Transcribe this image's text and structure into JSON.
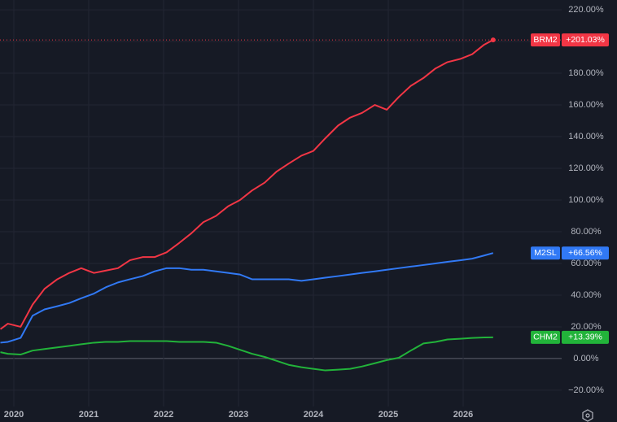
{
  "chart_data": {
    "type": "line",
    "x": [
      2019.82,
      2019.92,
      2020.09,
      2020.25,
      2020.41,
      2020.58,
      2020.74,
      2020.9,
      2021.07,
      2021.23,
      2021.39,
      2021.55,
      2021.72,
      2021.88,
      2022.04,
      2022.21,
      2022.37,
      2022.53,
      2022.7,
      2022.86,
      2023.02,
      2023.18,
      2023.35,
      2023.51,
      2023.67,
      2023.84,
      2024.0,
      2024.16,
      2024.33,
      2024.49,
      2024.65,
      2024.82,
      2024.98,
      2025.14,
      2025.3,
      2025.47,
      2025.63,
      2025.79,
      2025.96,
      2026.12,
      2026.28,
      2026.4
    ],
    "series": [
      {
        "name": "BRM2",
        "color": "#f23645",
        "price_line": true,
        "values": [
          18.5,
          22,
          20,
          34,
          44,
          50,
          54,
          57,
          54,
          55.5,
          57,
          62,
          64,
          64,
          67,
          73,
          79,
          86,
          90,
          96,
          100,
          106,
          111,
          118,
          123,
          128,
          131,
          139,
          147,
          152,
          155,
          160,
          157,
          165,
          172,
          177,
          183,
          187,
          189,
          192,
          198,
          201.03
        ],
        "value_labels": [
          null,
          null,
          null,
          null,
          null,
          null,
          null,
          null,
          null,
          null,
          null,
          null,
          null,
          null,
          null,
          null,
          null,
          null,
          null,
          null,
          null,
          null,
          null,
          null,
          null,
          null,
          null,
          null,
          null,
          null,
          null,
          null,
          null,
          null,
          null,
          null,
          null,
          null,
          null,
          null,
          null,
          "+201.03%"
        ]
      },
      {
        "name": "M2SL",
        "color": "#3179f5",
        "price_line": false,
        "values": [
          10,
          10.5,
          13,
          27,
          31,
          33,
          35,
          38,
          41,
          45,
          48,
          50,
          52,
          55,
          57,
          57,
          56,
          56,
          55,
          54,
          53,
          50,
          50,
          50,
          50,
          49,
          50,
          51,
          52,
          53,
          54,
          55,
          56,
          57,
          58,
          59,
          60,
          61,
          62,
          63,
          65,
          66.56
        ],
        "value_labels": [
          null,
          null,
          null,
          null,
          null,
          null,
          null,
          null,
          null,
          null,
          null,
          null,
          null,
          null,
          null,
          null,
          null,
          null,
          null,
          null,
          null,
          null,
          null,
          null,
          null,
          null,
          null,
          null,
          null,
          null,
          null,
          null,
          null,
          null,
          null,
          null,
          null,
          null,
          null,
          null,
          null,
          "+66.56%"
        ]
      },
      {
        "name": "CHM2",
        "color": "#22b33a",
        "price_line": false,
        "values": [
          4,
          3,
          2.5,
          5,
          6,
          7,
          8,
          9,
          10,
          10.5,
          10.5,
          11,
          11,
          11,
          11,
          10.5,
          10.5,
          10.5,
          10,
          8,
          5.5,
          3,
          1,
          -1.5,
          -4,
          -5.5,
          -6.5,
          -7.5,
          -7,
          -6.5,
          -5,
          -3,
          -1,
          0.5,
          5,
          9.5,
          10.5,
          12,
          12.5,
          13,
          13.3,
          13.39
        ],
        "value_labels": [
          null,
          null,
          null,
          null,
          null,
          null,
          null,
          null,
          null,
          null,
          null,
          null,
          null,
          null,
          null,
          null,
          null,
          null,
          null,
          null,
          null,
          null,
          null,
          null,
          null,
          null,
          null,
          null,
          null,
          null,
          null,
          null,
          null,
          null,
          null,
          null,
          null,
          null,
          null,
          null,
          null,
          "+13.39%"
        ]
      }
    ],
    "xlim": [
      2019.815,
      2027.315
    ],
    "xticks": [
      2020,
      2021,
      2022,
      2023,
      2024,
      2025,
      2026
    ],
    "ylim": [
      -30.3,
      226.2
    ],
    "yticks": [
      {
        "value": -20,
        "label": "−20.00%"
      },
      {
        "value": 0,
        "label": "0.00%"
      },
      {
        "value": 20,
        "label": "20.00%"
      },
      {
        "value": 40,
        "label": "40.00%"
      },
      {
        "value": 60,
        "label": "60.00%"
      },
      {
        "value": 80,
        "label": "80.00%"
      },
      {
        "value": 100,
        "label": "100.00%"
      },
      {
        "value": 120,
        "label": "120.00%"
      },
      {
        "value": 140,
        "label": "140.00%"
      },
      {
        "value": 160,
        "label": "160.00%"
      },
      {
        "value": 180,
        "label": "180.00%"
      },
      {
        "value": 200,
        "label": "200.00%"
      },
      {
        "value": 220,
        "label": "220.00%"
      }
    ],
    "grid": true,
    "zero_line": true
  }
}
